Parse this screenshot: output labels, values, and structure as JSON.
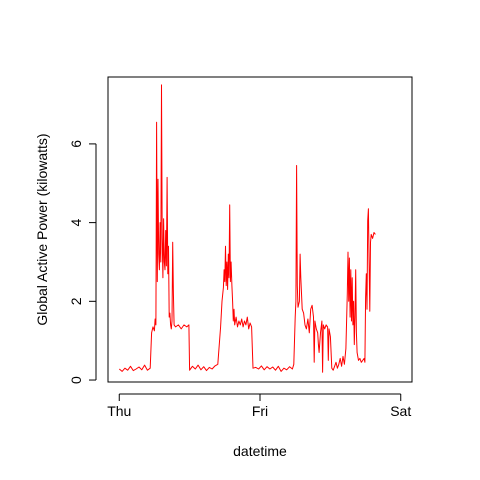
{
  "chart_data": {
    "type": "line",
    "title": "",
    "xlabel": "datetime",
    "ylabel": "Global Active Power (kilowatts)",
    "x_ticks": [
      {
        "x": 0,
        "label": "Thu"
      },
      {
        "x": 1,
        "label": "Fri"
      },
      {
        "x": 2,
        "label": "Sat"
      }
    ],
    "y_ticks": [
      0,
      2,
      4,
      6
    ],
    "xlim": [
      -0.08,
      2.08
    ],
    "ylim": [
      -0.05,
      7.7
    ],
    "grid": false,
    "legend": "none",
    "series": [
      {
        "color": "#ff0000",
        "x_unit": "days since Thu 00:00",
        "points": [
          [
            0.0,
            0.28
          ],
          [
            0.02,
            0.22
          ],
          [
            0.04,
            0.3
          ],
          [
            0.06,
            0.25
          ],
          [
            0.08,
            0.35
          ],
          [
            0.1,
            0.24
          ],
          [
            0.12,
            0.28
          ],
          [
            0.14,
            0.33
          ],
          [
            0.16,
            0.26
          ],
          [
            0.18,
            0.38
          ],
          [
            0.2,
            0.25
          ],
          [
            0.22,
            0.3
          ],
          [
            0.23,
            1.2
          ],
          [
            0.24,
            1.35
          ],
          [
            0.25,
            1.25
          ],
          [
            0.255,
            1.55
          ],
          [
            0.26,
            1.4
          ],
          [
            0.265,
            6.55
          ],
          [
            0.27,
            2.5
          ],
          [
            0.275,
            5.1
          ],
          [
            0.28,
            3.2
          ],
          [
            0.285,
            2.8
          ],
          [
            0.29,
            4.0
          ],
          [
            0.295,
            3.0
          ],
          [
            0.3,
            7.5
          ],
          [
            0.305,
            3.6
          ],
          [
            0.31,
            2.6
          ],
          [
            0.315,
            4.1
          ],
          [
            0.32,
            3.0
          ],
          [
            0.325,
            2.8
          ],
          [
            0.33,
            3.8
          ],
          [
            0.335,
            2.9
          ],
          [
            0.34,
            5.15
          ],
          [
            0.345,
            2.7
          ],
          [
            0.35,
            3.4
          ],
          [
            0.355,
            1.6
          ],
          [
            0.36,
            1.7
          ],
          [
            0.365,
            1.4
          ],
          [
            0.37,
            1.3
          ],
          [
            0.375,
            1.5
          ],
          [
            0.38,
            3.5
          ],
          [
            0.385,
            2.2
          ],
          [
            0.39,
            1.4
          ],
          [
            0.4,
            1.35
          ],
          [
            0.42,
            1.4
          ],
          [
            0.44,
            1.3
          ],
          [
            0.46,
            1.4
          ],
          [
            0.48,
            1.35
          ],
          [
            0.495,
            1.4
          ],
          [
            0.5,
            0.25
          ],
          [
            0.52,
            0.35
          ],
          [
            0.54,
            0.28
          ],
          [
            0.56,
            0.38
          ],
          [
            0.58,
            0.26
          ],
          [
            0.6,
            0.34
          ],
          [
            0.62,
            0.24
          ],
          [
            0.64,
            0.32
          ],
          [
            0.66,
            0.28
          ],
          [
            0.68,
            0.36
          ],
          [
            0.7,
            0.4
          ],
          [
            0.72,
            1.35
          ],
          [
            0.73,
            2.0
          ],
          [
            0.74,
            2.35
          ],
          [
            0.745,
            2.8
          ],
          [
            0.75,
            2.5
          ],
          [
            0.755,
            3.4
          ],
          [
            0.76,
            2.4
          ],
          [
            0.765,
            3.0
          ],
          [
            0.77,
            2.3
          ],
          [
            0.775,
            3.2
          ],
          [
            0.78,
            2.6
          ],
          [
            0.785,
            4.45
          ],
          [
            0.79,
            2.5
          ],
          [
            0.795,
            3.0
          ],
          [
            0.8,
            2.4
          ],
          [
            0.805,
            2.0
          ],
          [
            0.81,
            1.5
          ],
          [
            0.815,
            1.8
          ],
          [
            0.82,
            1.4
          ],
          [
            0.83,
            1.6
          ],
          [
            0.84,
            1.35
          ],
          [
            0.85,
            1.5
          ],
          [
            0.86,
            1.4
          ],
          [
            0.87,
            1.55
          ],
          [
            0.88,
            1.35
          ],
          [
            0.89,
            1.5
          ],
          [
            0.9,
            1.4
          ],
          [
            0.91,
            1.6
          ],
          [
            0.92,
            1.3
          ],
          [
            0.93,
            1.45
          ],
          [
            0.94,
            1.35
          ],
          [
            0.95,
            0.3
          ],
          [
            0.97,
            0.32
          ],
          [
            0.99,
            0.28
          ],
          [
            1.01,
            0.36
          ],
          [
            1.03,
            0.26
          ],
          [
            1.05,
            0.34
          ],
          [
            1.07,
            0.28
          ],
          [
            1.09,
            0.33
          ],
          [
            1.11,
            0.25
          ],
          [
            1.13,
            0.35
          ],
          [
            1.15,
            0.22
          ],
          [
            1.17,
            0.3
          ],
          [
            1.19,
            0.26
          ],
          [
            1.21,
            0.34
          ],
          [
            1.23,
            0.28
          ],
          [
            1.24,
            0.4
          ],
          [
            1.25,
            1.6
          ],
          [
            1.255,
            2.0
          ],
          [
            1.26,
            5.45
          ],
          [
            1.265,
            2.4
          ],
          [
            1.27,
            1.85
          ],
          [
            1.28,
            2.0
          ],
          [
            1.285,
            3.2
          ],
          [
            1.29,
            2.6
          ],
          [
            1.3,
            1.8
          ],
          [
            1.31,
            1.7
          ],
          [
            1.32,
            1.4
          ],
          [
            1.33,
            1.3
          ],
          [
            1.34,
            1.55
          ],
          [
            1.35,
            1.2
          ],
          [
            1.36,
            1.8
          ],
          [
            1.37,
            1.9
          ],
          [
            1.38,
            1.6
          ],
          [
            1.385,
            0.45
          ],
          [
            1.39,
            1.5
          ],
          [
            1.4,
            1.3
          ],
          [
            1.41,
            1.2
          ],
          [
            1.415,
            0.9
          ],
          [
            1.42,
            0.7
          ],
          [
            1.43,
            1.2
          ],
          [
            1.44,
            1.5
          ],
          [
            1.445,
            0.2
          ],
          [
            1.45,
            1.4
          ],
          [
            1.46,
            1.3
          ],
          [
            1.47,
            1.4
          ],
          [
            1.48,
            1.35
          ],
          [
            1.485,
            0.5
          ],
          [
            1.49,
            1.3
          ],
          [
            1.5,
            1.1
          ],
          [
            1.51,
            0.3
          ],
          [
            1.52,
            0.25
          ],
          [
            1.53,
            0.35
          ],
          [
            1.54,
            0.45
          ],
          [
            1.55,
            0.3
          ],
          [
            1.56,
            0.4
          ],
          [
            1.57,
            0.55
          ],
          [
            1.58,
            0.35
          ],
          [
            1.59,
            0.6
          ],
          [
            1.6,
            0.4
          ],
          [
            1.61,
            0.8
          ],
          [
            1.62,
            2.2
          ],
          [
            1.625,
            3.25
          ],
          [
            1.63,
            2.0
          ],
          [
            1.635,
            3.1
          ],
          [
            1.64,
            1.6
          ],
          [
            1.645,
            2.8
          ],
          [
            1.65,
            1.5
          ],
          [
            1.655,
            2.6
          ],
          [
            1.66,
            1.4
          ],
          [
            1.665,
            2.0
          ],
          [
            1.67,
            0.9
          ],
          [
            1.675,
            1.6
          ],
          [
            1.68,
            2.8
          ],
          [
            1.685,
            1.2
          ],
          [
            1.69,
            0.7
          ],
          [
            1.7,
            0.5
          ],
          [
            1.71,
            0.55
          ],
          [
            1.72,
            0.45
          ],
          [
            1.73,
            0.5
          ],
          [
            1.74,
            0.55
          ],
          [
            1.745,
            0.45
          ],
          [
            1.75,
            2.1
          ],
          [
            1.755,
            2.7
          ],
          [
            1.76,
            1.8
          ],
          [
            1.765,
            4.05
          ],
          [
            1.77,
            4.35
          ],
          [
            1.775,
            3.0
          ],
          [
            1.78,
            1.75
          ],
          [
            1.785,
            3.5
          ],
          [
            1.79,
            3.7
          ],
          [
            1.8,
            3.6
          ],
          [
            1.81,
            3.75
          ],
          [
            1.82,
            3.7
          ]
        ]
      }
    ]
  }
}
